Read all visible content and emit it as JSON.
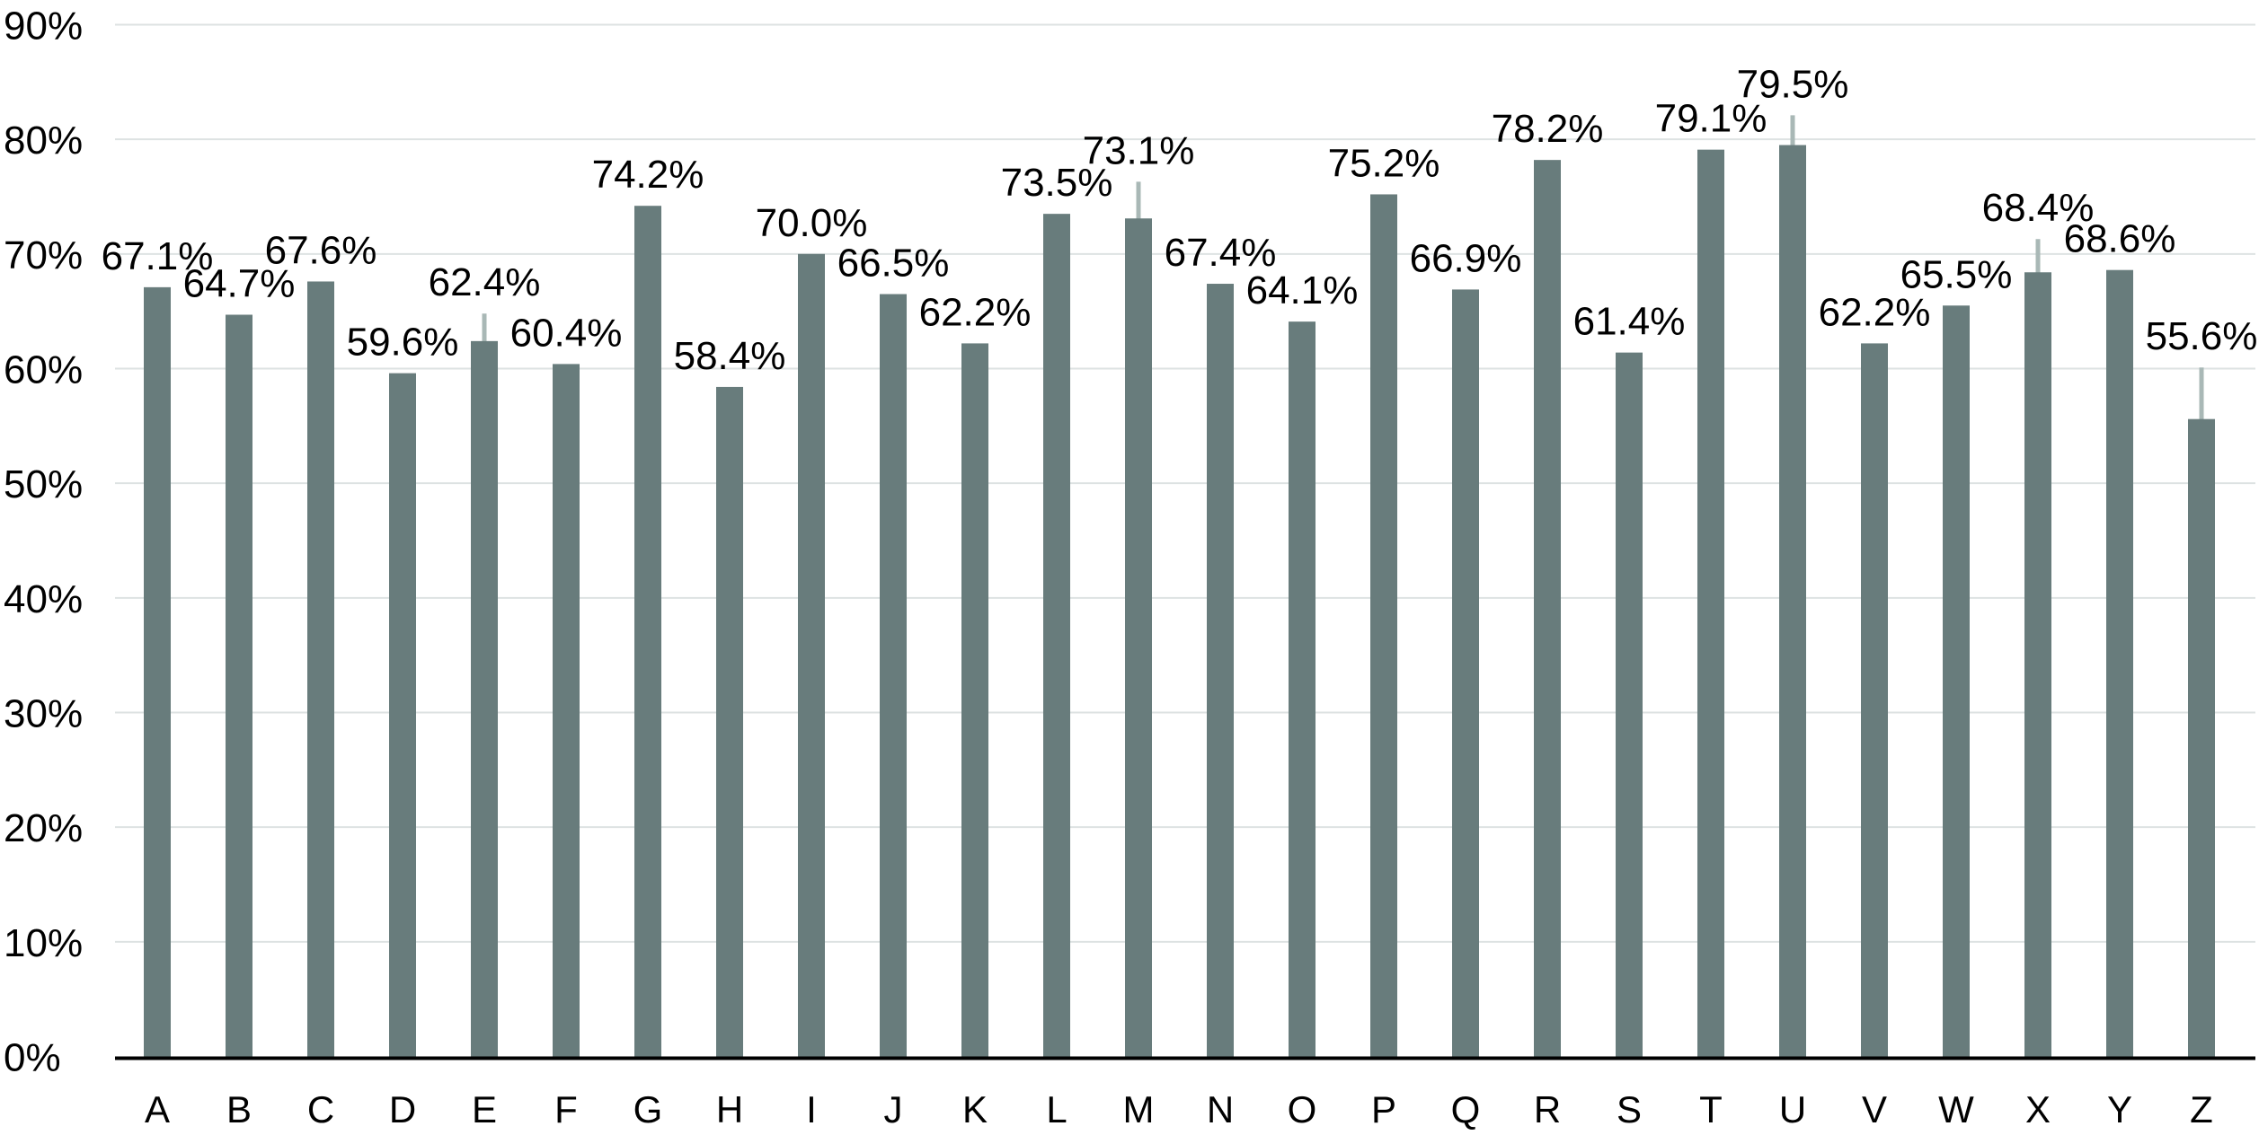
{
  "chart_data": {
    "type": "bar",
    "title": "",
    "xlabel": "",
    "ylabel": "",
    "categories": [
      "A",
      "B",
      "C",
      "D",
      "E",
      "F",
      "G",
      "H",
      "I",
      "J",
      "K",
      "L",
      "M",
      "N",
      "O",
      "P",
      "Q",
      "R",
      "S",
      "T",
      "U",
      "V",
      "W",
      "X",
      "Y",
      "Z"
    ],
    "values": [
      67.1,
      64.7,
      67.6,
      59.6,
      62.4,
      60.4,
      74.2,
      58.4,
      70.0,
      66.5,
      62.2,
      73.5,
      73.1,
      67.4,
      64.1,
      75.2,
      66.9,
      78.2,
      61.4,
      79.1,
      79.5,
      62.2,
      65.5,
      68.4,
      68.6,
      55.6
    ],
    "error_plus": [
      0,
      0,
      0,
      0,
      2.4,
      0,
      0,
      0,
      0,
      0,
      0,
      0,
      3.2,
      0,
      0,
      0,
      0,
      0,
      0,
      0,
      2.6,
      0,
      0,
      2.9,
      0,
      4.5
    ],
    "data_labels": [
      "67.1%",
      "64.7%",
      "67.6%",
      "59.6%",
      "62.4%",
      "60.4%",
      "74.2%",
      "58.4%",
      "70.0%",
      "66.5%",
      "62.2%",
      "73.5%",
      "73.1%",
      "67.4%",
      "64.1%",
      "75.2%",
      "66.9%",
      "78.2%",
      "61.4%",
      "79.1%",
      "79.5%",
      "62.2%",
      "65.5%",
      "68.4%",
      "68.6%",
      "55.6%"
    ],
    "ylim": [
      0,
      90
    ],
    "yticks": [
      0,
      10,
      20,
      30,
      40,
      50,
      60,
      70,
      80,
      90
    ],
    "ytick_labels": [
      "0%",
      "10%",
      "20%",
      "30%",
      "40%",
      "50%",
      "60%",
      "70%",
      "80%",
      "90%"
    ],
    "grid": true,
    "legend": null,
    "colors": {
      "bar": "#687c7c",
      "error_bar": "#a9b8b6",
      "gridline": "#dde2e2",
      "axis_line": "#000000",
      "text": "#000000",
      "background": "#ffffff"
    }
  }
}
